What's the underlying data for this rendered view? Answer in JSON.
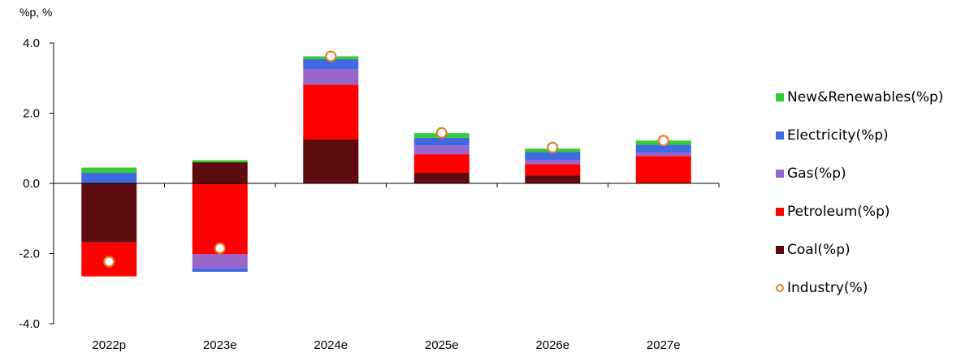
{
  "chart_data": {
    "type": "bar",
    "stacked": true,
    "unit_label": "%p, %",
    "categories": [
      "2022p",
      "2023e",
      "2024e",
      "2025e",
      "2026e",
      "2027e"
    ],
    "ylim": [
      -4.0,
      4.0
    ],
    "yticks": [
      "4.0",
      "2.0",
      "0.0",
      "-2.0",
      "-4.0"
    ],
    "series": [
      {
        "name": "Coal(%p)",
        "color": "#5e0b0f",
        "values": [
          -1.68,
          0.6,
          1.25,
          0.3,
          0.22,
          0.0
        ]
      },
      {
        "name": "Petroleum(%p)",
        "color": "#ff0000",
        "values": [
          -0.97,
          -2.02,
          1.56,
          0.53,
          0.33,
          0.78
        ]
      },
      {
        "name": "Gas(%p)",
        "color": "#9966cc",
        "values": [
          0.0,
          -0.4,
          0.45,
          0.25,
          0.12,
          0.1
        ]
      },
      {
        "name": "Electricity(%p)",
        "color": "#4169e1",
        "values": [
          0.3,
          -0.1,
          0.28,
          0.22,
          0.22,
          0.22
        ]
      },
      {
        "name": "New&Renewables(%p)",
        "color": "#33cc33",
        "values": [
          0.15,
          0.06,
          0.08,
          0.13,
          0.1,
          0.12
        ]
      }
    ],
    "markers": {
      "name": "Industry(%)",
      "color": "#d9822b",
      "values": [
        -2.23,
        -1.85,
        3.62,
        1.44,
        1.02,
        1.22
      ]
    },
    "legend": [
      "New&Renewables(%p)",
      "Electricity(%p)",
      "Gas(%p)",
      "Petroleum(%p)",
      "Coal(%p)",
      "Industry(%)"
    ],
    "legend_position": "right"
  }
}
